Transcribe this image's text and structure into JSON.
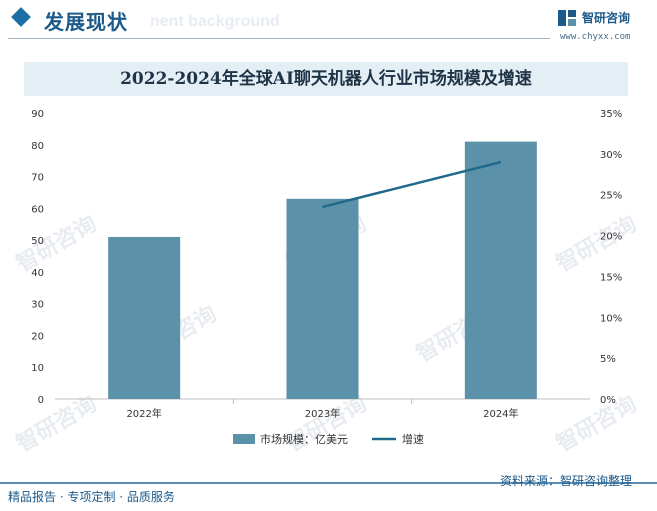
{
  "header": {
    "section_title": "发展现状",
    "ghost_text": "nent background"
  },
  "brand": {
    "name": "智研咨询",
    "url": "www.chyxx.com"
  },
  "footer": {
    "left_text": "精品报告 · 专项定制 · 品质服务",
    "source": "资料来源：智研咨询整理"
  },
  "watermark": "智研咨询",
  "colors": {
    "bar": "#5b91a9",
    "line": "#1f6a8a",
    "accent": "#1c5a8a"
  },
  "chart_data": {
    "type": "bar",
    "title": "2022-2024年全球AI聊天机器人行业市场规模及增速",
    "categories": [
      "2022年",
      "2023年",
      "2024年"
    ],
    "series": [
      {
        "name": "市场规模：亿美元",
        "type": "bar",
        "axis": "left",
        "values": [
          51,
          63,
          81
        ]
      },
      {
        "name": "增速",
        "type": "line",
        "axis": "right",
        "values": [
          null,
          23.5,
          29
        ]
      }
    ],
    "y_left": {
      "min": 0,
      "max": 90,
      "ticks": [
        "0",
        "10",
        "20",
        "30",
        "40",
        "50",
        "60",
        "70",
        "80",
        "90"
      ]
    },
    "y_right": {
      "min": 0,
      "max": 35,
      "ticks": [
        "0%",
        "5%",
        "10%",
        "15%",
        "20%",
        "25%",
        "30%",
        "35%"
      ]
    },
    "grid": false,
    "legend": "bottom-center"
  }
}
